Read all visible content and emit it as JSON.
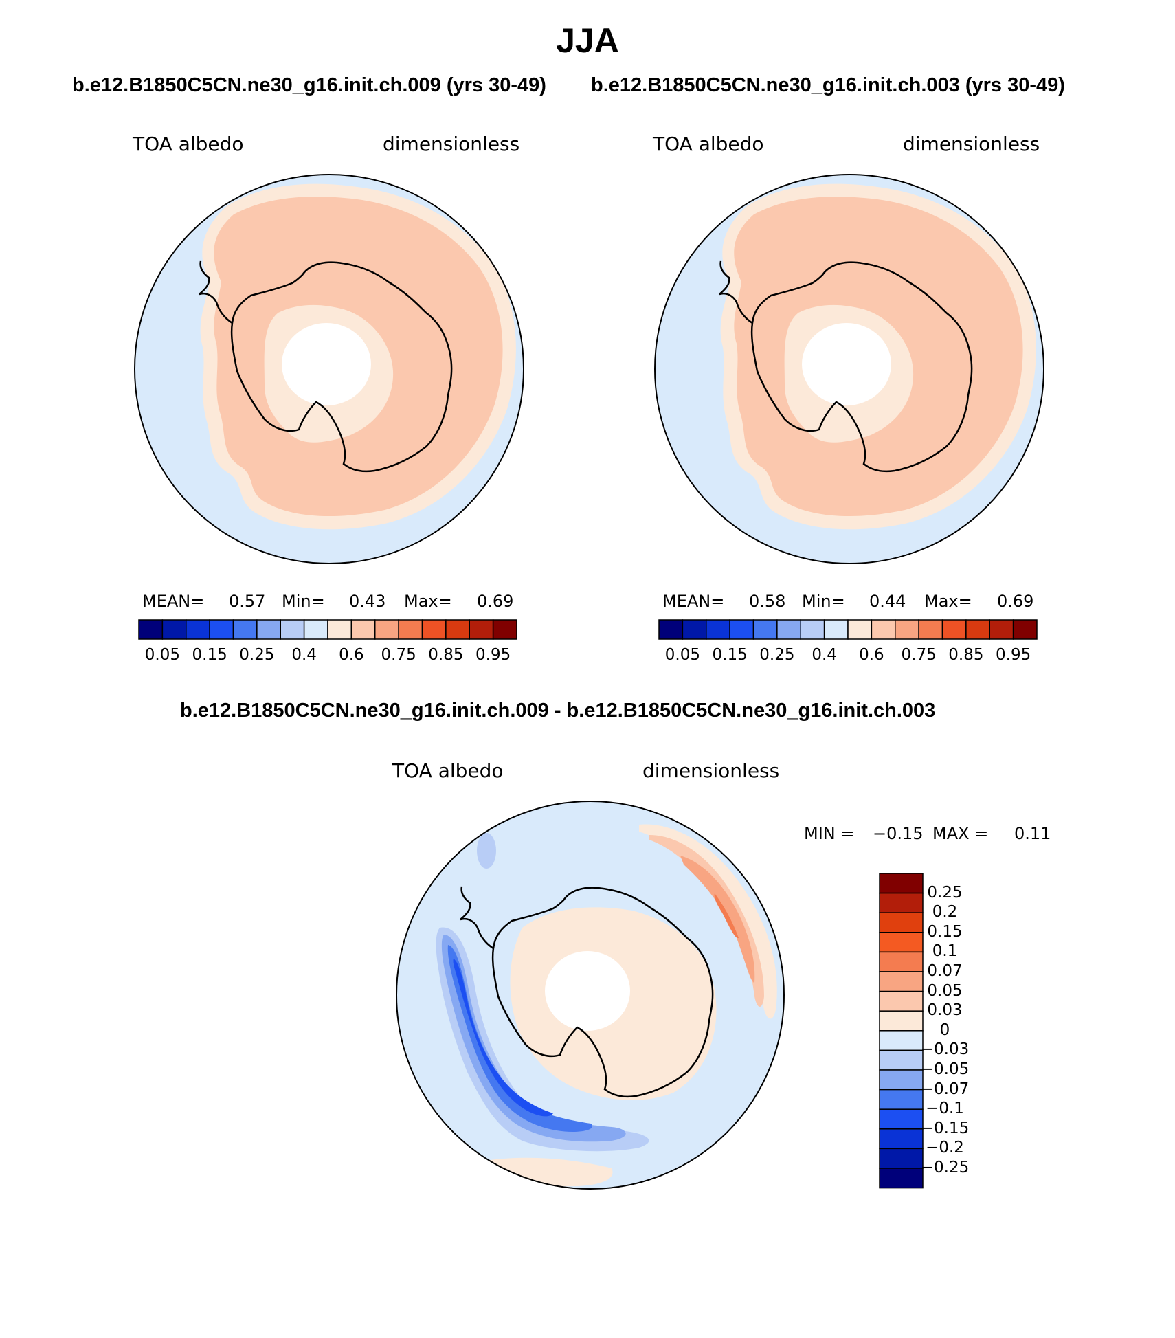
{
  "header": {
    "title": "JJA",
    "subtitle_left": "b.e12.B1850C5CN.ne30_g16.init.ch.009 (yrs 30-49)",
    "subtitle_right": "b.e12.B1850C5CN.ne30_g16.init.ch.003 (yrs 30-49)",
    "diff_title": "b.e12.B1850C5CN.ne30_g16.init.ch.009 - b.e12.B1850C5CN.ne30_g16.init.ch.003"
  },
  "panels": [
    {
      "variable": "TOA albedo",
      "units": "dimensionless",
      "mean_label": "MEAN=",
      "mean_value": "0.57",
      "min_label": "Min=",
      "min_value": "0.43",
      "max_label": "Max=",
      "max_value": "0.69"
    },
    {
      "variable": "TOA albedo",
      "units": "dimensionless",
      "mean_label": "MEAN=",
      "mean_value": "0.58",
      "min_label": "Min=",
      "min_value": "0.44",
      "max_label": "Max=",
      "max_value": "0.69"
    }
  ],
  "diff_panel": {
    "variable": "TOA albedo",
    "units": "dimensionless",
    "min_label": "MIN =",
    "min_value": "−0.15",
    "max_label": "MAX =",
    "max_value": "0.11"
  },
  "abs_colorbar": {
    "colors": [
      "#00007a",
      "#0018a8",
      "#0a33d6",
      "#1c4ff2",
      "#4578f0",
      "#86a8f2",
      "#b8cdf6",
      "#d9eafb",
      "#fce9d9",
      "#fbc8ae",
      "#f8a582",
      "#f47c50",
      "#ee5225",
      "#d83a10",
      "#b21e0a",
      "#800000"
    ],
    "tick_labels": [
      "0.05",
      "0.15",
      "0.25",
      "0.4",
      "0.6",
      "0.75",
      "0.85",
      "0.95"
    ]
  },
  "diff_colorbar": {
    "colors": [
      "#800000",
      "#b21e0a",
      "#e0400e",
      "#f45a22",
      "#f47c50",
      "#f8a582",
      "#fbc8ae",
      "#fce9d9",
      "#d9eafb",
      "#b8cdf6",
      "#86a8f2",
      "#4578f0",
      "#1c4ff2",
      "#0a33d6",
      "#0018a8",
      "#00007a"
    ],
    "tick_labels": [
      "0.25",
      "0.2",
      "0.15",
      "0.1",
      "0.07",
      "0.05",
      "0.03",
      "0",
      "−0.03",
      "−0.05",
      "−0.07",
      "−0.1",
      "−0.15",
      "−0.2",
      "−0.25"
    ]
  },
  "map_colors": {
    "ocean_background": "#d9eafb",
    "band_light": "#fce9d9",
    "band_main": "#fbc8ae",
    "diff_positive_light": "#fce9d9",
    "diff_positive_mid": "#fbc8ae",
    "diff_positive_strong": "#f8a582",
    "diff_positive_max": "#f47c50",
    "diff_negative_light": "#b8cdf6",
    "diff_negative_mid": "#86a8f2",
    "diff_negative_strong": "#4578f0",
    "diff_negative_max": "#1c4ff2",
    "missing": "#ffffff"
  }
}
